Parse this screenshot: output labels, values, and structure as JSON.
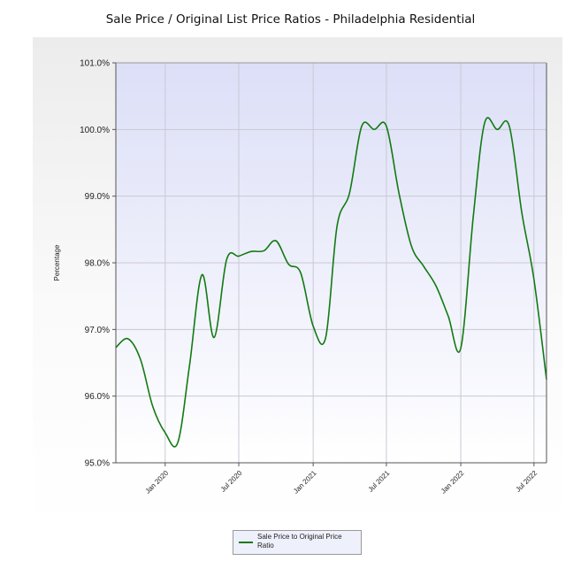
{
  "chart_data": {
    "type": "line",
    "title": "Sale Price / Original List Price Ratios - Philadelphia Residential",
    "ylabel": "Percentage",
    "xlabel": "",
    "ylim": [
      95.0,
      101.0
    ],
    "y_ticks": [
      "95.0%",
      "96.0%",
      "97.0%",
      "98.0%",
      "99.0%",
      "100.0%",
      "101.0%"
    ],
    "y_tick_values": [
      95,
      96,
      97,
      98,
      99,
      100,
      101
    ],
    "x_ticks": [
      "Jan 2020",
      "Jul 2020",
      "Jan 2021",
      "Jul 2021",
      "Jan 2022",
      "Jul 2022"
    ],
    "x_tick_values": [
      "2020-01-01",
      "2020-07-01",
      "2021-01-01",
      "2021-07-01",
      "2022-01-01",
      "2022-07-01"
    ],
    "xlim": [
      "2019-09-01",
      "2022-08-01"
    ],
    "grid": true,
    "legend_position": "bottom-center",
    "series": [
      {
        "name": "Sale Price to Original Price Ratio",
        "color": "#127a12",
        "x": [
          "2019-09-01",
          "2019-10-01",
          "2019-11-01",
          "2019-12-01",
          "2020-01-01",
          "2020-02-01",
          "2020-03-01",
          "2020-04-01",
          "2020-05-01",
          "2020-06-01",
          "2020-07-01",
          "2020-08-01",
          "2020-09-01",
          "2020-10-01",
          "2020-11-01",
          "2020-12-01",
          "2021-01-01",
          "2021-02-01",
          "2021-03-01",
          "2021-04-01",
          "2021-05-01",
          "2021-06-01",
          "2021-07-01",
          "2021-08-01",
          "2021-09-01",
          "2021-10-01",
          "2021-11-01",
          "2021-12-01",
          "2022-01-01",
          "2022-02-01",
          "2022-03-01",
          "2022-04-01",
          "2022-05-01",
          "2022-06-01",
          "2022-07-01",
          "2022-08-01"
        ],
        "y": [
          96.73,
          96.86,
          96.55,
          95.85,
          95.45,
          95.3,
          96.45,
          97.82,
          96.88,
          98.05,
          98.1,
          98.17,
          98.18,
          98.33,
          97.98,
          97.85,
          97.05,
          96.88,
          98.55,
          99.05,
          100.05,
          100.0,
          100.05,
          99.05,
          98.25,
          97.95,
          97.65,
          97.2,
          96.72,
          98.7,
          100.1,
          100.0,
          100.05,
          98.75,
          97.75,
          96.25
        ]
      }
    ]
  },
  "legend": {
    "label": "Sale Price to Original Price Ratio"
  }
}
